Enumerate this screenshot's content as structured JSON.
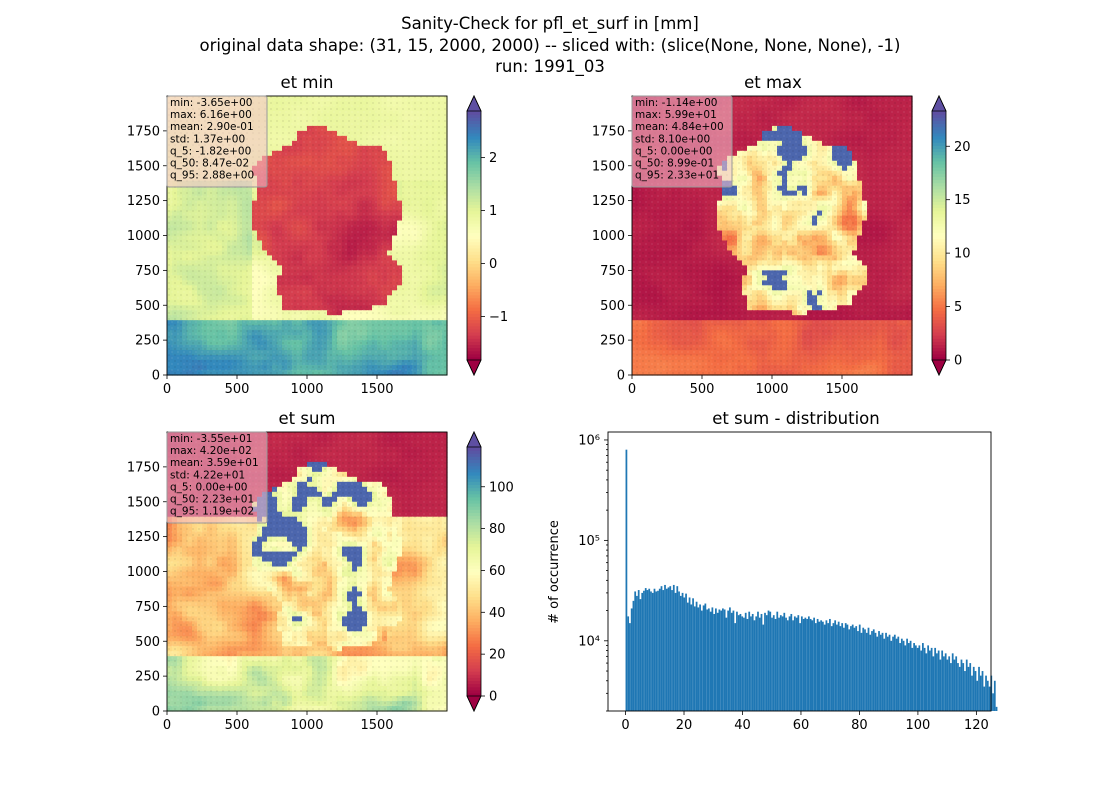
{
  "figure": {
    "suptitle": [
      "Sanity-Check for pfl_et_surf in [mm]",
      "original data shape: (31, 15, 2000, 2000) -- sliced with: (slice(None, None, None), -1)",
      "run: 1991_03"
    ]
  },
  "colors": {
    "cmap": [
      "#9e0142",
      "#d53e4f",
      "#f46d43",
      "#fdae61",
      "#fee08b",
      "#ffffbf",
      "#e6f598",
      "#abdda4",
      "#66c2a5",
      "#3288bd",
      "#5e4fa2"
    ],
    "hist_bar": "#1f77b4",
    "stats_box_fill": "#f4c2d0",
    "stats_box_edge": "#999999"
  },
  "panels": [
    {
      "id": "et-min",
      "title": "et min",
      "type": "heatmap",
      "xticks": [
        "0",
        "500",
        "1000",
        "1500"
      ],
      "yticks": [
        "0",
        "250",
        "500",
        "750",
        "1000",
        "1250",
        "1500",
        "1750"
      ],
      "xlim": [
        0,
        2000
      ],
      "ylim": [
        0,
        2000
      ],
      "colorbar": {
        "vmin": -1.82,
        "vmax": 2.88,
        "ticks": [
          -1,
          0,
          1,
          2
        ],
        "tick_labels": [
          "−1",
          "0",
          "1",
          "2"
        ],
        "extend": "both"
      },
      "stats": [
        "min: -3.65e+00",
        "max: 6.16e+00",
        "mean: 2.90e-01",
        "std: 1.37e+00",
        "q_5: -1.82e+00",
        "q_50: 8.47e-02",
        "q_95: 2.88e+00"
      ]
    },
    {
      "id": "et-max",
      "title": "et max",
      "type": "heatmap",
      "xticks": [
        "0",
        "500",
        "1000",
        "1500"
      ],
      "yticks": [
        "0",
        "250",
        "500",
        "750",
        "1000",
        "1250",
        "1500",
        "1750"
      ],
      "xlim": [
        0,
        2000
      ],
      "ylim": [
        0,
        2000
      ],
      "colorbar": {
        "vmin": 0,
        "vmax": 23.3,
        "ticks": [
          0,
          5,
          10,
          15,
          20
        ],
        "tick_labels": [
          "0",
          "5",
          "10",
          "15",
          "20"
        ],
        "extend": "both"
      },
      "stats": [
        "min: -1.14e+00",
        "max: 5.99e+01",
        "mean: 4.84e+00",
        "std: 8.10e+00",
        "q_5: 0.00e+00",
        "q_50: 8.99e-01",
        "q_95: 2.33e+01"
      ]
    },
    {
      "id": "et-sum",
      "title": "et sum",
      "type": "heatmap",
      "xticks": [
        "0",
        "500",
        "1000",
        "1500"
      ],
      "yticks": [
        "0",
        "250",
        "500",
        "750",
        "1000",
        "1250",
        "1500",
        "1750"
      ],
      "xlim": [
        0,
        2000
      ],
      "ylim": [
        0,
        2000
      ],
      "colorbar": {
        "vmin": 0,
        "vmax": 119,
        "ticks": [
          0,
          20,
          40,
          60,
          80,
          100
        ],
        "tick_labels": [
          "0",
          "20",
          "40",
          "60",
          "80",
          "100"
        ],
        "extend": "both"
      },
      "stats": [
        "min: -3.55e+01",
        "max: 4.20e+02",
        "mean: 3.59e+01",
        "std: 4.22e+01",
        "q_5: 0.00e+00",
        "q_50: 2.23e+01",
        "q_95: 1.19e+02"
      ]
    }
  ],
  "chart_data": {
    "type": "bar",
    "title": "et sum - distribution",
    "xlabel": "",
    "ylabel": "# of occurrence",
    "yscale": "log",
    "xlim": [
      -6,
      125
    ],
    "ylim": [
      2000,
      1200000
    ],
    "xticks": [
      "0",
      "20",
      "40",
      "60",
      "80",
      "100",
      "120"
    ],
    "xtick_values": [
      0,
      20,
      40,
      60,
      80,
      100,
      120
    ],
    "yticks": [
      "10⁴",
      "10⁵",
      "10⁶"
    ],
    "ytick_values": [
      10000,
      100000,
      1000000
    ],
    "bin_start": 0,
    "bin_width": 0.6,
    "counts": [
      800000,
      17500,
      15000,
      21000,
      25000,
      31000,
      28000,
      32000,
      26000,
      30000,
      31500,
      33500,
      32000,
      33000,
      31000,
      30000,
      33000,
      31000,
      31500,
      33000,
      35000,
      32000,
      36000,
      33000,
      34000,
      35000,
      32000,
      36000,
      30000,
      35000,
      31000,
      28000,
      30000,
      27000,
      29500,
      24000,
      27000,
      23000,
      26500,
      22000,
      24500,
      21500,
      23000,
      20000,
      22500,
      23500,
      20500,
      21000,
      19500,
      21500,
      18500,
      21000,
      19000,
      20500,
      20000,
      21000,
      20500,
      17000,
      20000,
      21500,
      19000,
      20000,
      15000,
      19500,
      18000,
      18500,
      17500,
      17000,
      19000,
      16500,
      19500,
      17500,
      18500,
      16000,
      17500,
      19500,
      17000,
      18500,
      14500,
      19000,
      18000,
      20000,
      19500,
      17000,
      18000,
      16500,
      19500,
      17000,
      18000,
      17500,
      19000,
      17000,
      16000,
      17500,
      18500,
      16000,
      17500,
      17000,
      18000,
      15000,
      17500,
      16500,
      17000,
      16500,
      17500,
      16500,
      16000,
      17000,
      15000,
      16500,
      15500,
      16000,
      15500,
      14500,
      16000,
      15000,
      16500,
      14000,
      15000,
      16000,
      14500,
      15500,
      14000,
      15000,
      13500,
      15000,
      14500,
      13000,
      14000,
      14500,
      13500,
      14000,
      12500,
      14500,
      12000,
      13500,
      13000,
      12000,
      13500,
      11500,
      12500,
      13000,
      12000,
      11000,
      12500,
      11500,
      12000,
      10500,
      12000,
      11000,
      11500,
      10000,
      11000,
      11500,
      10500,
      11000,
      9500,
      10500,
      10000,
      9000,
      10500,
      9500,
      10000,
      8500,
      9500,
      9000,
      8500,
      9000,
      8000,
      9500,
      8500,
      7500,
      9000,
      8000,
      8500,
      7000,
      8500,
      7500,
      8000,
      6500,
      8000,
      7000,
      7500,
      6500,
      7000,
      6000,
      7500,
      6500,
      7000,
      6000,
      5500,
      6500,
      6000,
      5000,
      6500,
      5500,
      6000,
      4500,
      5500,
      5000,
      4000,
      5500,
      4500,
      5000,
      3500,
      4500,
      4000,
      3500,
      4500,
      3000,
      4000,
      2200
    ]
  }
}
